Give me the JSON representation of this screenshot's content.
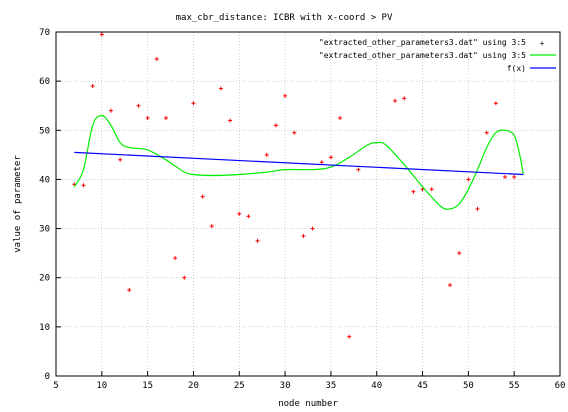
{
  "chart_data": {
    "type": "scatter",
    "title": "max_cbr_distance: ICBR with x-coord > PV",
    "xlabel": "node number",
    "ylabel": "value of parameter",
    "xlim": [
      5,
      60
    ],
    "ylim": [
      0,
      70
    ],
    "xticks": [
      "5",
      "10",
      "15",
      "20",
      "25",
      "30",
      "35",
      "40",
      "45",
      "50",
      "55",
      "60"
    ],
    "yticks": [
      "0",
      "10",
      "20",
      "30",
      "40",
      "50",
      "60",
      "70"
    ],
    "grid": true,
    "legend_position": "top-right",
    "series": [
      {
        "name": "\"extracted_other_parameters3.dat\" using 3:5",
        "kind": "points",
        "color": "#ff0000",
        "points": [
          [
            7,
            39
          ],
          [
            8,
            38.8
          ],
          [
            9,
            59
          ],
          [
            10,
            69.5
          ],
          [
            11,
            54
          ],
          [
            12,
            44
          ],
          [
            13,
            17.5
          ],
          [
            14,
            55
          ],
          [
            15,
            52.5
          ],
          [
            16,
            64.5
          ],
          [
            17,
            52.5
          ],
          [
            18,
            24
          ],
          [
            19,
            20
          ],
          [
            20,
            55.5
          ],
          [
            21,
            36.5
          ],
          [
            22,
            30.5
          ],
          [
            23,
            58.5
          ],
          [
            24,
            52
          ],
          [
            25,
            33
          ],
          [
            26,
            32.5
          ],
          [
            27,
            27.5
          ],
          [
            28,
            45
          ],
          [
            29,
            51
          ],
          [
            30,
            57
          ],
          [
            31,
            49.5
          ],
          [
            32,
            28.5
          ],
          [
            33,
            30
          ],
          [
            34,
            43.5
          ],
          [
            35,
            44.5
          ],
          [
            36,
            52.5
          ],
          [
            37,
            8
          ],
          [
            38,
            42
          ],
          [
            42,
            56
          ],
          [
            43,
            56.5
          ],
          [
            44,
            37.5
          ],
          [
            45,
            38
          ],
          [
            46,
            38
          ],
          [
            48,
            18.5
          ],
          [
            49,
            25
          ],
          [
            50,
            40
          ],
          [
            51,
            34
          ],
          [
            52,
            49.5
          ],
          [
            53,
            55.5
          ],
          [
            54,
            40.5
          ],
          [
            55,
            40.5
          ]
        ]
      },
      {
        "name": "\"extracted_other_parameters3.dat\" using 3:5",
        "kind": "smooth",
        "color": "#00ee00",
        "points": [
          [
            7,
            38.5
          ],
          [
            8,
            42
          ],
          [
            9,
            51
          ],
          [
            10,
            53
          ],
          [
            11,
            51
          ],
          [
            12,
            47.5
          ],
          [
            13,
            46.5
          ],
          [
            15,
            46
          ],
          [
            17,
            44
          ],
          [
            19,
            41.5
          ],
          [
            20,
            41
          ],
          [
            22,
            40.8
          ],
          [
            25,
            41
          ],
          [
            28,
            41.5
          ],
          [
            30,
            42
          ],
          [
            33,
            42
          ],
          [
            35,
            42.5
          ],
          [
            37,
            44.5
          ],
          [
            39,
            47
          ],
          [
            40,
            47.5
          ],
          [
            41,
            47
          ],
          [
            43,
            43
          ],
          [
            45,
            38.5
          ],
          [
            47,
            34.5
          ],
          [
            48,
            34
          ],
          [
            49,
            35
          ],
          [
            50,
            38
          ],
          [
            51,
            42
          ],
          [
            52,
            46.5
          ],
          [
            53,
            49.5
          ],
          [
            54,
            50
          ],
          [
            55,
            49
          ],
          [
            55.6,
            45
          ],
          [
            56,
            41
          ]
        ]
      },
      {
        "name": "f(x)",
        "kind": "line",
        "color": "#0000ff",
        "points": [
          [
            7,
            45.5
          ],
          [
            56,
            41
          ]
        ]
      }
    ]
  }
}
